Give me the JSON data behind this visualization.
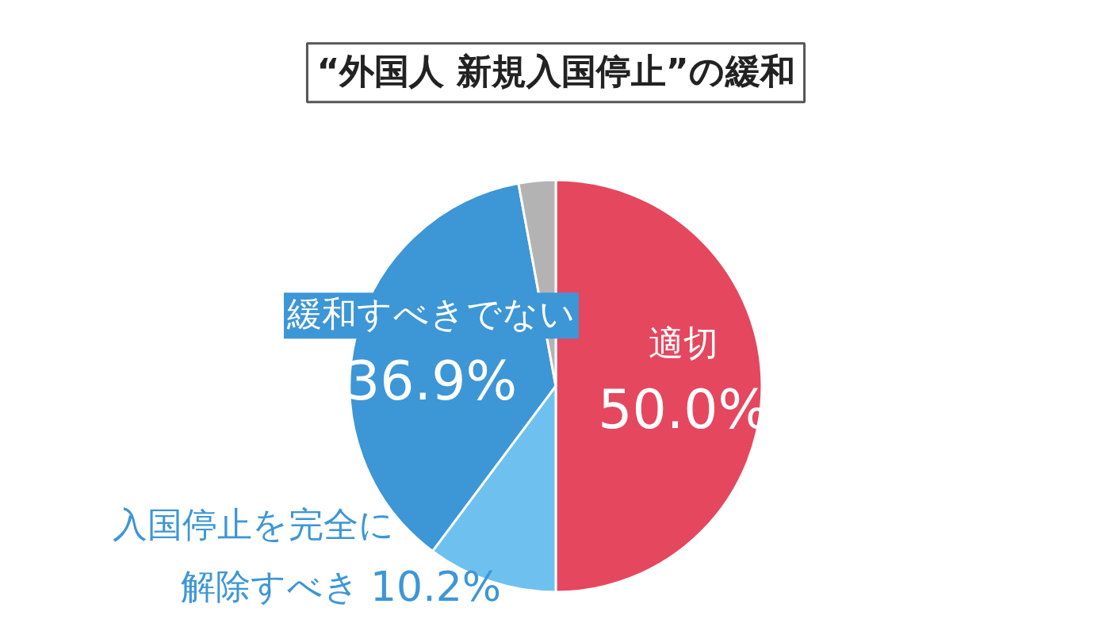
{
  "chart_data": {
    "type": "pie",
    "title": "“外国人 新規入国停止”の緩和",
    "categories": [
      "適切",
      "入国停止を完全に解除すべき",
      "緩和すべきでない",
      null
    ],
    "values": [
      50.0,
      10.2,
      36.9,
      2.9
    ],
    "colors": [
      "#e5475f",
      "#6ec1ee",
      "#3d96d6",
      "#b3b3b3"
    ],
    "value_labels": [
      "50.0%",
      "10.2%",
      "36.9%",
      null
    ]
  }
}
